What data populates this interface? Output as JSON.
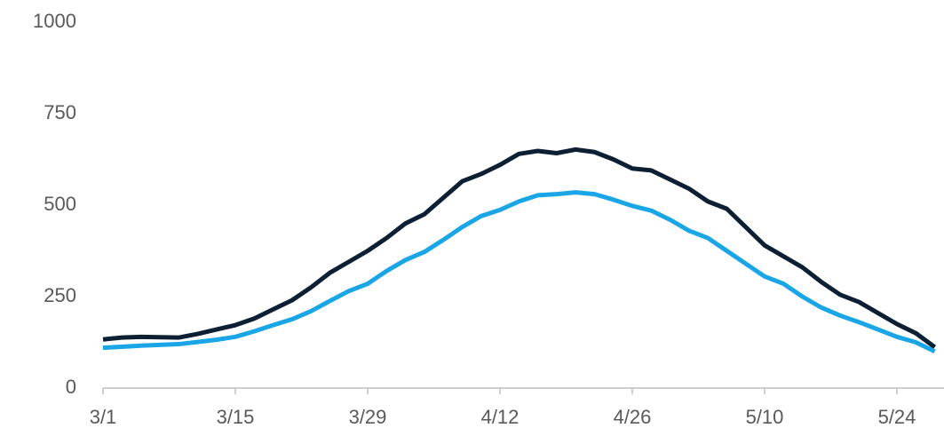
{
  "chart_data": {
    "type": "line",
    "categories": [
      "3/1",
      null,
      null,
      null,
      null,
      null,
      null,
      "3/15",
      null,
      null,
      null,
      null,
      null,
      null,
      "3/29",
      null,
      null,
      null,
      null,
      null,
      null,
      "4/12",
      null,
      null,
      null,
      null,
      null,
      null,
      "4/26",
      null,
      null,
      null,
      null,
      null,
      null,
      "5/10",
      null,
      null,
      null,
      null,
      null,
      null,
      "5/24",
      null,
      null
    ],
    "series": [
      {
        "color": "#0c1f33",
        "values": [
          133,
          138,
          140,
          139,
          138,
          148,
          160,
          172,
          190,
          215,
          240,
          275,
          315,
          345,
          375,
          410,
          450,
          475,
          520,
          565,
          585,
          610,
          640,
          648,
          642,
          652,
          645,
          625,
          600,
          595,
          570,
          545,
          510,
          490,
          440,
          390,
          360,
          330,
          290,
          255,
          235,
          205,
          175,
          150,
          112
        ]
      },
      {
        "color": "#1aa6e6",
        "values": [
          110,
          113,
          116,
          118,
          120,
          126,
          132,
          140,
          155,
          172,
          188,
          210,
          238,
          265,
          285,
          320,
          350,
          372,
          405,
          440,
          470,
          487,
          510,
          527,
          530,
          535,
          530,
          515,
          498,
          485,
          460,
          430,
          410,
          375,
          340,
          305,
          285,
          250,
          220,
          198,
          180,
          160,
          140,
          125,
          100
        ]
      }
    ],
    "ylim": [
      0,
      1000
    ],
    "yticks": [
      0,
      250,
      500,
      750,
      1000
    ],
    "grid": false
  }
}
